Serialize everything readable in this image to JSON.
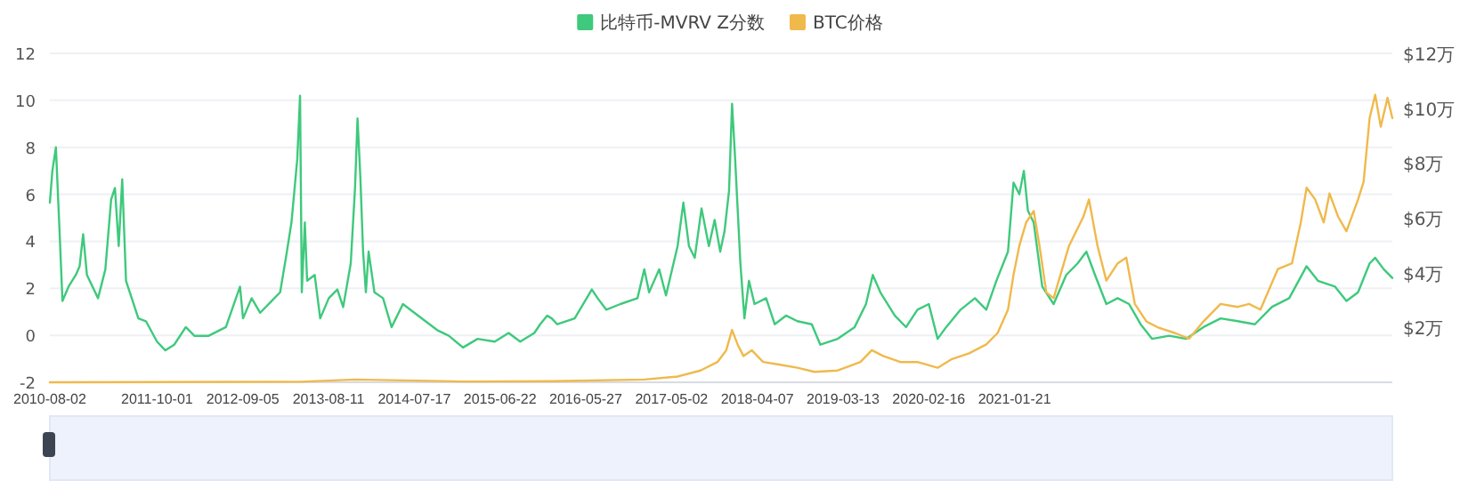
{
  "chart_data": {
    "type": "line",
    "legend": "top",
    "grid": "y",
    "xlim": [
      "2010-08-02",
      "2025-02-27"
    ],
    "xticks": [
      "2010-08-02",
      "2011-10-01",
      "2012-09-05",
      "2013-08-11",
      "2014-07-17",
      "2015-06-22",
      "2016-05-27",
      "2017-05-02",
      "2018-04-07",
      "2019-03-13",
      "2020-02-16",
      "2021-01-21"
    ],
    "ylim": [
      -2,
      12
    ],
    "yticks": [
      -2,
      0,
      2,
      4,
      6,
      8,
      10,
      12
    ],
    "y2lim": [
      0,
      12
    ],
    "y2ticks": [
      {
        "value": 2,
        "label": "$2万"
      },
      {
        "value": 4,
        "label": "$4万"
      },
      {
        "value": 6,
        "label": "$6万"
      },
      {
        "value": 8,
        "label": "$8万"
      },
      {
        "value": 10,
        "label": "$10万"
      },
      {
        "value": 12,
        "label": "$12万"
      }
    ],
    "series": [
      {
        "name": "比特币-MVRV Z分数",
        "color": "#3ec97c",
        "x": [
          "2010-08-02",
          "2010-08-12",
          "2010-08-26",
          "2010-09-10",
          "2010-09-21",
          "2010-10-15",
          "2010-11-13",
          "2010-11-28",
          "2010-12-12",
          "2010-12-27",
          "2011-02-09",
          "2011-03-10",
          "2011-04-02",
          "2011-04-17",
          "2011-05-02",
          "2011-05-16",
          "2011-05-31",
          "2011-07-19",
          "2011-08-18",
          "2011-10-01",
          "2011-11-03",
          "2011-12-08",
          "2012-01-23",
          "2012-02-26",
          "2012-04-23",
          "2012-06-30",
          "2012-08-25",
          "2012-09-06",
          "2012-10-10",
          "2012-11-13",
          "2012-12-28",
          "2013-01-31",
          "2013-02-23",
          "2013-03-17",
          "2013-04-09",
          "2013-04-20",
          "2013-04-27",
          "2013-05-09",
          "2013-05-18",
          "2013-06-17",
          "2013-07-09",
          "2013-08-12",
          "2013-09-15",
          "2013-10-08",
          "2013-11-07",
          "2013-11-24",
          "2013-12-04",
          "2013-12-15",
          "2013-12-26",
          "2014-01-06",
          "2014-01-17",
          "2014-02-09",
          "2014-03-15",
          "2014-04-18",
          "2014-06-02",
          "2014-07-17",
          "2014-10-16",
          "2014-12-01",
          "2015-01-26",
          "2015-03-25",
          "2015-06-01",
          "2015-07-26",
          "2015-09-10",
          "2015-11-05",
          "2015-11-28",
          "2015-12-26",
          "2016-01-13",
          "2016-02-04",
          "2016-04-13",
          "2016-06-20",
          "2016-07-13",
          "2016-08-16",
          "2016-10-11",
          "2016-12-18",
          "2017-01-14",
          "2017-02-02",
          "2017-03-14",
          "2017-04-10",
          "2017-05-26",
          "2017-06-18",
          "2017-07-10",
          "2017-08-02",
          "2017-08-29",
          "2017-09-27",
          "2017-10-20",
          "2017-11-11",
          "2017-11-28",
          "2017-12-16",
          "2017-12-28",
          "2018-01-08",
          "2018-01-30",
          "2018-02-15",
          "2018-03-05",
          "2018-03-27",
          "2018-05-12",
          "2018-06-15",
          "2018-07-30",
          "2018-09-13",
          "2018-11-09",
          "2018-12-13",
          "2019-02-20",
          "2019-04-28",
          "2019-06-12",
          "2019-07-09",
          "2019-08-08",
          "2019-10-04",
          "2019-11-18",
          "2020-01-02",
          "2020-02-16",
          "2020-03-22",
          "2020-04-25",
          "2020-06-21",
          "2020-08-17",
          "2020-10-01",
          "2020-11-10",
          "2020-12-26",
          "2021-01-17",
          "2021-02-09",
          "2021-02-27",
          "2021-03-15",
          "2021-04-07",
          "2021-05-11",
          "2021-06-25",
          "2021-08-14",
          "2021-09-28",
          "2021-11-02",
          "2021-12-06",
          "2022-01-20",
          "2022-03-06",
          "2022-04-20",
          "2022-06-05",
          "2022-07-20",
          "2022-09-26",
          "2022-12-03",
          "2023-02-09",
          "2023-04-18",
          "2023-06-25",
          "2023-09-01",
          "2023-11-08",
          "2024-01-15",
          "2024-03-24",
          "2024-05-08",
          "2024-07-15",
          "2024-08-29",
          "2024-10-14",
          "2024-11-29",
          "2024-12-21",
          "2025-01-24",
          "2025-02-27"
        ],
        "values": [
          5.65,
          7.0,
          8.0,
          4.3,
          1.46,
          2.07,
          2.57,
          2.94,
          4.3,
          2.57,
          1.58,
          2.8,
          5.78,
          6.27,
          3.8,
          6.64,
          2.32,
          0.72,
          0.6,
          -0.27,
          -0.64,
          -0.4,
          0.35,
          -0.02,
          -0.02,
          0.35,
          2.07,
          0.72,
          1.58,
          0.96,
          1.46,
          1.83,
          3.3,
          4.8,
          7.5,
          10.2,
          1.83,
          4.8,
          2.32,
          2.57,
          0.72,
          1.58,
          1.95,
          1.2,
          3.06,
          6.27,
          9.23,
          6.77,
          3.56,
          1.83,
          3.56,
          1.83,
          1.58,
          0.35,
          1.33,
          0.96,
          0.22,
          -0.02,
          -0.52,
          -0.15,
          -0.27,
          0.1,
          -0.27,
          0.1,
          0.47,
          0.84,
          0.72,
          0.47,
          0.72,
          1.95,
          1.58,
          1.09,
          1.33,
          1.58,
          2.81,
          1.83,
          2.81,
          1.7,
          3.8,
          5.65,
          3.8,
          3.3,
          5.4,
          3.8,
          4.91,
          3.56,
          4.42,
          6.15,
          9.85,
          7.75,
          3.06,
          0.72,
          2.32,
          1.33,
          1.58,
          0.47,
          0.84,
          0.6,
          0.47,
          -0.4,
          -0.15,
          0.35,
          1.33,
          2.57,
          1.83,
          0.84,
          0.35,
          1.09,
          1.33,
          -0.15,
          0.35,
          1.09,
          1.58,
          1.09,
          2.32,
          3.56,
          6.5,
          6.0,
          7.0,
          5.3,
          4.8,
          2.07,
          1.33,
          2.57,
          3.06,
          3.56,
          2.57,
          1.33,
          1.58,
          1.33,
          0.47,
          -0.15,
          -0.02,
          -0.15,
          0.35,
          0.72,
          0.6,
          0.47,
          1.21,
          1.58,
          2.94,
          2.32,
          2.07,
          1.46,
          1.83,
          3.06,
          3.3,
          2.81,
          2.44
        ]
      },
      {
        "name": "BTC价格",
        "color": "#f0b94c",
        "axis": "y2",
        "x": [
          "2010-08-02",
          "2013-04-20",
          "2013-11-24",
          "2015-01-26",
          "2016-01-13",
          "2017-01-14",
          "2017-05-26",
          "2017-08-25",
          "2017-10-31",
          "2017-12-05",
          "2017-12-28",
          "2018-01-19",
          "2018-02-11",
          "2018-03-16",
          "2018-04-30",
          "2018-07-07",
          "2018-09-13",
          "2018-11-20",
          "2019-02-20",
          "2019-05-21",
          "2019-07-05",
          "2019-08-19",
          "2019-10-26",
          "2020-01-02",
          "2020-03-22",
          "2020-05-18",
          "2020-07-25",
          "2020-10-01",
          "2020-11-15",
          "2020-12-26",
          "2021-01-17",
          "2021-02-09",
          "2021-03-08",
          "2021-04-07",
          "2021-04-30",
          "2021-05-27",
          "2021-06-25",
          "2021-08-25",
          "2021-10-21",
          "2021-11-12",
          "2021-12-16",
          "2022-01-20",
          "2022-03-06",
          "2022-04-09",
          "2022-05-13",
          "2022-06-28",
          "2022-08-11",
          "2022-10-18",
          "2022-12-14",
          "2023-02-09",
          "2023-04-18",
          "2023-06-25",
          "2023-08-09",
          "2023-09-23",
          "2023-12-01",
          "2024-01-26",
          "2024-03-01",
          "2024-03-24",
          "2024-04-27",
          "2024-05-31",
          "2024-06-23",
          "2024-07-27",
          "2024-08-29",
          "2024-10-14",
          "2024-11-05",
          "2024-11-29",
          "2024-12-21",
          "2025-01-12",
          "2025-02-08",
          "2025-02-27"
        ],
        "values": [
          0,
          0.02,
          0.1,
          0.03,
          0.04,
          0.1,
          0.21,
          0.43,
          0.74,
          1.17,
          1.91,
          1.38,
          0.96,
          1.17,
          0.74,
          0.64,
          0.53,
          0.38,
          0.43,
          0.74,
          1.17,
          0.96,
          0.74,
          0.74,
          0.53,
          0.85,
          1.06,
          1.38,
          1.8,
          2.65,
          3.92,
          4.98,
          5.83,
          6.25,
          4.98,
          3.28,
          3.07,
          4.98,
          6.04,
          6.67,
          4.98,
          3.71,
          4.34,
          4.55,
          2.86,
          2.22,
          2.01,
          1.8,
          1.59,
          2.22,
          2.86,
          2.75,
          2.86,
          2.65,
          4.13,
          4.34,
          5.83,
          7.1,
          6.67,
          5.83,
          6.89,
          6.04,
          5.51,
          6.67,
          7.31,
          9.64,
          10.49,
          9.32,
          10.38,
          9.64
        ]
      }
    ]
  }
}
